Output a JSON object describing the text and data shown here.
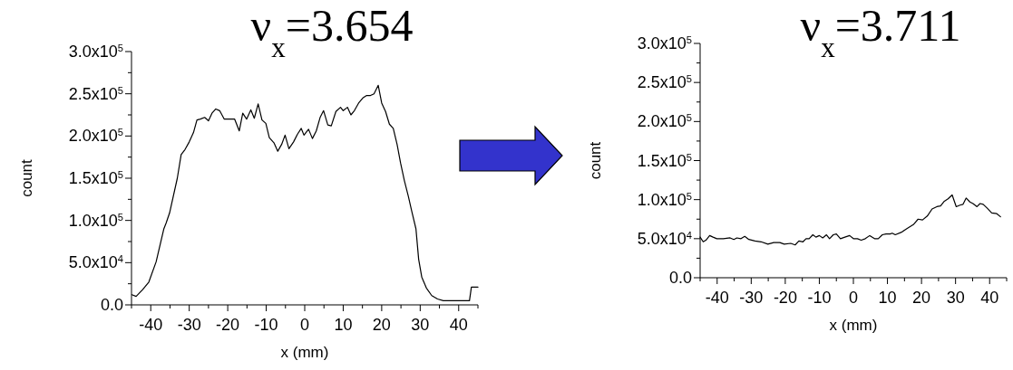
{
  "chart_data": [
    {
      "type": "line",
      "title": "ν$_{x}$=3.654",
      "xlabel": "x (mm)",
      "ylabel": "count",
      "xlim": [
        -45,
        45
      ],
      "ylim": [
        0,
        300000
      ],
      "xticks": [
        {
          "value": -45,
          "label": null
        },
        -40,
        {
          "value": -35,
          "label": null
        },
        -30,
        {
          "value": -25,
          "label": null
        },
        -20,
        {
          "value": -15,
          "label": null
        },
        -10,
        {
          "value": -5,
          "label": null
        },
        0,
        {
          "value": 5,
          "label": null
        },
        10,
        {
          "value": 15,
          "label": null
        },
        20,
        {
          "value": 25,
          "label": null
        },
        30,
        {
          "value": 35,
          "label": null
        },
        40,
        {
          "value": 45,
          "label": null
        }
      ],
      "yticks": [
        {
          "value": 0,
          "label": "0.0"
        },
        {
          "value": 25000,
          "label": null
        },
        {
          "value": 50000,
          "label": "5.0x10$^{4}$"
        },
        {
          "value": 75000,
          "label": null
        },
        {
          "value": 100000,
          "label": "1.0x10$^{5}$"
        },
        {
          "value": 125000,
          "label": null
        },
        {
          "value": 150000,
          "label": "1.5x10$^{5}$"
        },
        {
          "value": 175000,
          "label": null
        },
        {
          "value": 200000,
          "label": "2.0x10$^{5}$"
        },
        {
          "value": 225000,
          "label": null
        },
        {
          "value": 250000,
          "label": "2.5x10$^{5}$"
        },
        {
          "value": 275000,
          "label": null
        },
        {
          "value": 300000,
          "label": "3.0x10$^{5}$"
        }
      ],
      "series": [
        {
          "color": "#000000",
          "x": [
            -44.9,
            -43.8,
            -42.1,
            -40.5,
            -38.6,
            -36.6,
            -36.0,
            -35.1,
            -33.1,
            -32.1,
            -31.1,
            -30.0,
            -28.9,
            -28.0,
            -27.1,
            -26.0,
            -25.0,
            -24.1,
            -23.1,
            -22.1,
            -20.9,
            -18.2,
            -17.0,
            -16.1,
            -15.1,
            -14.0,
            -13.1,
            -12.1,
            -11.1,
            -10.1,
            -9.2,
            -8.0,
            -7.0,
            -6.0,
            -5.1,
            -4.1,
            -2.9,
            -1.9,
            -0.9,
            -0.2,
            1.0,
            2.0,
            3.0,
            4.0,
            4.9,
            6.0,
            6.9,
            8.1,
            9.3,
            10.0,
            11.1,
            12.0,
            12.9,
            14.0,
            15.1,
            16.1,
            17.1,
            18.0,
            19.1,
            20.0,
            21.0,
            22.0,
            23.0,
            24.0,
            24.9,
            25.9,
            26.9,
            27.8,
            28.9,
            29.6,
            30.4,
            31.6,
            33.0,
            34.5,
            36.0,
            42.8,
            43.3,
            45.0
          ],
          "values": [
            12000,
            10000,
            18000,
            27000,
            51000,
            90000,
            97000,
            109000,
            150000,
            178000,
            184000,
            193000,
            204000,
            219000,
            220000,
            222000,
            218000,
            227000,
            232000,
            230000,
            220000,
            220000,
            206000,
            227000,
            220000,
            231000,
            221000,
            238000,
            219000,
            215000,
            198000,
            192000,
            182000,
            190000,
            201000,
            185000,
            193000,
            202000,
            209000,
            201000,
            208000,
            197000,
            206000,
            222000,
            230000,
            213000,
            212000,
            229000,
            234000,
            230000,
            234000,
            225000,
            230000,
            239000,
            245000,
            248000,
            248000,
            250000,
            260000,
            239000,
            229000,
            214000,
            209000,
            190000,
            168000,
            147000,
            129000,
            111000,
            90000,
            54000,
            33000,
            20000,
            11000,
            7000,
            5000,
            5000,
            21000,
            21000
          ]
        }
      ]
    },
    {
      "type": "line",
      "title": "ν$_{x}$=3.711",
      "xlabel": "x (mm)",
      "ylabel": "count",
      "xlim": [
        -45,
        45
      ],
      "ylim": [
        0,
        300000
      ],
      "xticks": [
        {
          "value": -45,
          "label": null
        },
        -40,
        {
          "value": -35,
          "label": null
        },
        -30,
        {
          "value": -25,
          "label": null
        },
        -20,
        {
          "value": -15,
          "label": null
        },
        -10,
        {
          "value": -5,
          "label": null
        },
        0,
        {
          "value": 5,
          "label": null
        },
        10,
        {
          "value": 15,
          "label": null
        },
        20,
        {
          "value": 25,
          "label": null
        },
        30,
        {
          "value": 35,
          "label": null
        },
        40,
        {
          "value": 45,
          "label": null
        }
      ],
      "yticks": [
        {
          "value": 0,
          "label": "0.0"
        },
        {
          "value": 25000,
          "label": null
        },
        {
          "value": 50000,
          "label": "5.0x10$^{4}$"
        },
        {
          "value": 75000,
          "label": null
        },
        {
          "value": 100000,
          "label": "1.0x10$^{5}$"
        },
        {
          "value": 125000,
          "label": null
        },
        {
          "value": 150000,
          "label": "1.5x10$^{5}$"
        },
        {
          "value": 175000,
          "label": null
        },
        {
          "value": 200000,
          "label": "2.0x10$^{5}$"
        },
        {
          "value": 225000,
          "label": null
        },
        {
          "value": 250000,
          "label": "2.5x10$^{5}$"
        },
        {
          "value": 275000,
          "label": null
        },
        {
          "value": 300000,
          "label": "3.0x10$^{5}$"
        }
      ],
      "series": [
        {
          "color": "#000000",
          "x": [
            -45.0,
            -44.1,
            -43.3,
            -42.2,
            -41.2,
            -40.1,
            -38.2,
            -36.2,
            -35.1,
            -34.2,
            -33.0,
            -31.9,
            -30.7,
            -28.9,
            -27.1,
            -25.1,
            -23.4,
            -21.6,
            -20.3,
            -18.4,
            -17.1,
            -16.0,
            -14.8,
            -13.9,
            -13.0,
            -11.9,
            -11.0,
            -10.0,
            -9.0,
            -7.9,
            -7.0,
            -5.9,
            -5.0,
            -3.8,
            -2.5,
            -1.1,
            0.0,
            1.2,
            2.3,
            3.5,
            4.8,
            6.2,
            7.3,
            8.5,
            9.6,
            10.8,
            11.4,
            12.3,
            14.0,
            15.8,
            17.6,
            19.0,
            20.3,
            21.7,
            23.1,
            24.5,
            25.6,
            26.7,
            27.8,
            29.0,
            30.2,
            31.3,
            32.2,
            33.1,
            34.2,
            35.1,
            36.3,
            37.2,
            38.1,
            39.3,
            40.6,
            42.1,
            43.2
          ],
          "values": [
            52000,
            46000,
            48000,
            54000,
            52000,
            50000,
            50000,
            51000,
            49000,
            51000,
            50000,
            53000,
            49000,
            47000,
            46000,
            43000,
            45000,
            45000,
            43000,
            44000,
            42000,
            47000,
            46000,
            50000,
            50000,
            55000,
            52000,
            54000,
            51000,
            55000,
            50000,
            55000,
            56000,
            50000,
            52000,
            54000,
            50000,
            50000,
            48000,
            50000,
            54000,
            50000,
            50000,
            55000,
            56000,
            56000,
            57000,
            55000,
            58000,
            63000,
            68000,
            75000,
            74000,
            79000,
            88000,
            91000,
            92000,
            98000,
            101000,
            106000,
            91000,
            93000,
            94000,
            102000,
            97000,
            95000,
            91000,
            95000,
            94000,
            89000,
            83000,
            82000,
            78000
          ]
        }
      ]
    }
  ]
}
